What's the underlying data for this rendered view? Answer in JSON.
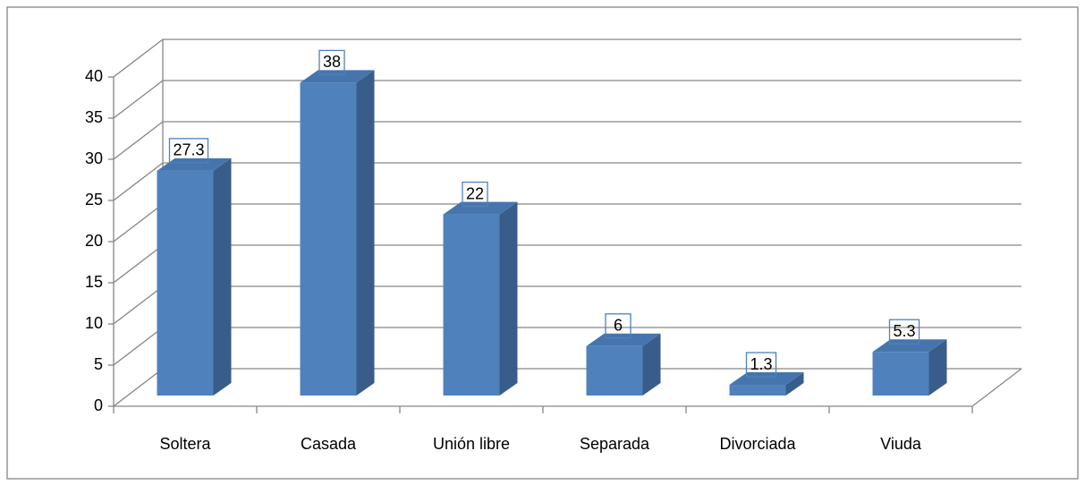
{
  "chart_data": {
    "type": "bar3d",
    "categories": [
      "Soltera",
      "Casada",
      "Unión libre",
      "Separada",
      "Divorciada",
      "Viuda"
    ],
    "values": [
      27.3,
      38,
      22,
      6,
      1.3,
      5.3
    ],
    "color": "#4f81bd",
    "ylim": [
      0,
      40
    ],
    "yticks": [
      0,
      5,
      10,
      15,
      20,
      25,
      30,
      35,
      40
    ],
    "grid": true
  }
}
